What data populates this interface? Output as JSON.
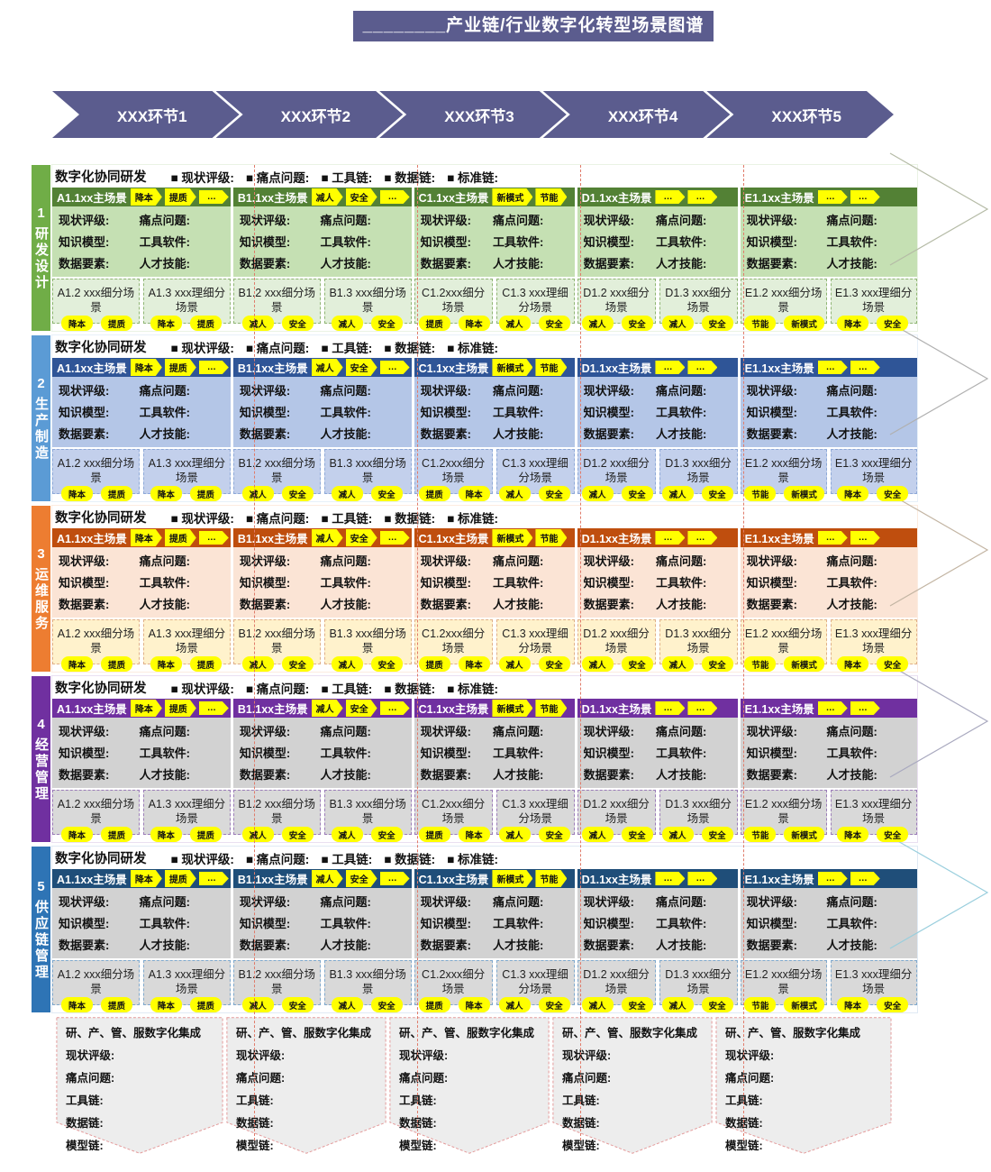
{
  "title": "________产业链/行业数字化转型场景图谱",
  "process_steps": [
    "XXX环节1",
    "XXX环节2",
    "XXX环节3",
    "XXX环节4",
    "XXX环节5"
  ],
  "section_header": {
    "label": "数字化协同研发",
    "bullets": [
      "■ 现状评级:",
      "■ 痛点问题:",
      "■ 工具链:",
      "■ 数据链:",
      "■ 标准链:"
    ]
  },
  "card_fields": [
    "现状评级:",
    "痛点问题:",
    "知识模型:",
    "工具软件:",
    "数据要素:",
    "人才技能:"
  ],
  "cards": [
    {
      "title": "A1.1xx主场景",
      "head_tags": [
        "降本",
        "提质",
        "…"
      ],
      "subs": [
        {
          "label": "A1.2 xxx细分场景",
          "tags": [
            "降本",
            "提质"
          ]
        },
        {
          "label": "A1.3 xxx理细分场景",
          "tags": [
            "降本",
            "提质"
          ]
        }
      ]
    },
    {
      "title": "B1.1xx主场景",
      "head_tags": [
        "减人",
        "安全",
        "…"
      ],
      "subs": [
        {
          "label": "B1.2 xxx细分场景",
          "tags": [
            "减人",
            "安全"
          ]
        },
        {
          "label": "B1.3 xxx细分场景",
          "tags": [
            "减人",
            "安全"
          ]
        }
      ]
    },
    {
      "title": "C1.1xx主场景",
      "head_tags": [
        "新模式",
        "节能"
      ],
      "subs": [
        {
          "label": "C1.2xxx细分场景",
          "tags": [
            "提质",
            "降本"
          ]
        },
        {
          "label": "C1.3 xxx理细分场景",
          "tags": [
            "减人",
            "安全"
          ]
        }
      ]
    },
    {
      "title": "D1.1xx主场景",
      "head_tags": [
        "…",
        "…"
      ],
      "subs": [
        {
          "label": "D1.2 xxx细分场景",
          "tags": [
            "减人",
            "安全"
          ]
        },
        {
          "label": "D1.3 xxx细分场景",
          "tags": [
            "减人",
            "安全"
          ]
        }
      ]
    },
    {
      "title": "E1.1xx主场景",
      "head_tags": [
        "…",
        "…"
      ],
      "subs": [
        {
          "label": "E1.2 xxx细分场景",
          "tags": [
            "节能",
            "新模式"
          ]
        },
        {
          "label": "E1.3 xxx理细分场景",
          "tags": [
            "降本",
            "安全"
          ]
        }
      ]
    }
  ],
  "sections": [
    {
      "num": "1",
      "label": "研发设计",
      "side": "#70ad47",
      "head": "#538135",
      "body": "#c5e0b3",
      "sub": "#e2efda",
      "sub_border": "#8fb573"
    },
    {
      "num": "2",
      "label": "生产制造",
      "side": "#5b9bd5",
      "head": "#2f5597",
      "body": "#b4c6e7",
      "sub": "#c3d0ec",
      "sub_border": "#8ea9d8"
    },
    {
      "num": "3",
      "label": "运维服务",
      "side": "#ed7d31",
      "head": "#bf4e0e",
      "body": "#fbe4d5",
      "sub": "#fff2cc",
      "sub_border": "#e0b088"
    },
    {
      "num": "4",
      "label": "经营管理",
      "side": "#7030a0",
      "head": "#7030a0",
      "body": "#d2d2d2",
      "sub": "#d9d9d9",
      "sub_border": "#9b7cb8"
    },
    {
      "num": "5",
      "label": "供应链管理",
      "side": "#2e74b5",
      "head": "#1f4e79",
      "body": "#d2d2d2",
      "sub": "#d9d9d9",
      "sub_border": "#7fa8cc"
    }
  ],
  "bottom_banner": {
    "title": "研、产、管、服数字化集成",
    "fields": [
      "现状评级:",
      "痛点问题:",
      "工具链:",
      "数据链:",
      "模型链:"
    ]
  },
  "colors": {
    "accent_purple": "#5b5c8e",
    "tag_yellow": "#ffff00",
    "lane_divider": "#e07b6a",
    "banner_fill": "#ededed",
    "banner_border": "#e49c9c",
    "flow_arrows": [
      "#b5bba6",
      "#b0b0b0",
      "#c3b5a3",
      "#a9a9bf",
      "#99cedd"
    ]
  }
}
